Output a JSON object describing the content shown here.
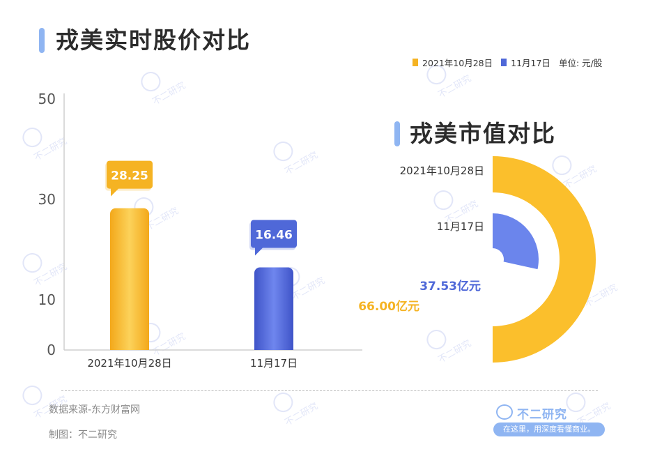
{
  "price_section": {
    "title": "戎美实时股价对比"
  },
  "cap_section": {
    "title": "戎美市值对比"
  },
  "legend": {
    "items": [
      {
        "label": "2021年10月28日",
        "color": "#f5b323"
      },
      {
        "label": "11月17日",
        "color": "#4f68d8"
      }
    ],
    "unit": "单位: 元/股"
  },
  "chart_data": [
    {
      "type": "bar",
      "title": "戎美实时股价对比",
      "categories": [
        "2021年10月28日",
        "11月17日"
      ],
      "values": [
        28.25,
        16.46
      ],
      "data_labels": [
        "28.25",
        "16.46"
      ],
      "colors": [
        "#f5b323",
        "#4f68d8"
      ],
      "ylim": [
        0,
        50
      ],
      "yticks": [
        0,
        10,
        30,
        50
      ],
      "ytick_labels": [
        "0",
        "10",
        "30",
        "50"
      ],
      "unit": "元/股",
      "grid": false
    },
    {
      "type": "pie",
      "variant": "concentric-rings",
      "title": "戎美市值对比",
      "labels": [
        "2021年10月28日",
        "11月17日"
      ],
      "values": [
        66.0,
        37.53
      ],
      "value_labels": [
        "66.00亿元",
        "37.53亿元"
      ],
      "unit": "亿元",
      "colors": [
        "#fbbf2c",
        "#6b85ec"
      ]
    }
  ],
  "footer": {
    "source": "数据来源-东方财富网",
    "credit": "制图：不二研究"
  },
  "brand": {
    "name": "不二研究",
    "slogan": "在这里，用深度看懂商业。",
    "watermark": "不二研究"
  }
}
